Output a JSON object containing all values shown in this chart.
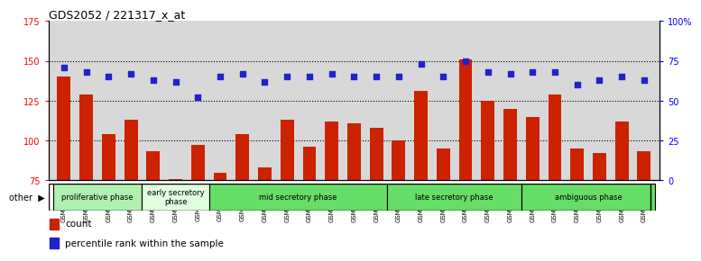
{
  "title": "GDS2052 / 221317_x_at",
  "samples": [
    "GSM109814",
    "GSM109815",
    "GSM109816",
    "GSM109817",
    "GSM109820",
    "GSM109821",
    "GSM109822",
    "GSM109824",
    "GSM109825",
    "GSM109826",
    "GSM109827",
    "GSM109828",
    "GSM109829",
    "GSM109830",
    "GSM109831",
    "GSM109834",
    "GSM109835",
    "GSM109836",
    "GSM109837",
    "GSM109838",
    "GSM109839",
    "GSM109818",
    "GSM109819",
    "GSM109823",
    "GSM109832",
    "GSM109833",
    "GSM109840"
  ],
  "counts": [
    140,
    129,
    104,
    113,
    93,
    76,
    97,
    80,
    104,
    83,
    113,
    96,
    112,
    111,
    108,
    100,
    131,
    95,
    151,
    125,
    120,
    115,
    129,
    95,
    92,
    112,
    93
  ],
  "percentiles": [
    71,
    68,
    65,
    67,
    63,
    62,
    52,
    65,
    67,
    62,
    65,
    65,
    67,
    65,
    65,
    65,
    73,
    65,
    75,
    68,
    67,
    68,
    68,
    60,
    63,
    65,
    63
  ],
  "phases": [
    {
      "label": "proliferative phase",
      "start": 0,
      "end": 4,
      "color": "#b0f0b0"
    },
    {
      "label": "early secretory\nphase",
      "start": 4,
      "end": 7,
      "color": "#dfffdf"
    },
    {
      "label": "mid secretory phase",
      "start": 7,
      "end": 15,
      "color": "#66dd66"
    },
    {
      "label": "late secretory phase",
      "start": 15,
      "end": 21,
      "color": "#66dd66"
    },
    {
      "label": "ambiguous phase",
      "start": 21,
      "end": 27,
      "color": "#66dd66"
    }
  ],
  "ylim_left": [
    75,
    175
  ],
  "ylim_right": [
    0,
    100
  ],
  "yticks_left": [
    75,
    100,
    125,
    150,
    175
  ],
  "yticks_right": [
    0,
    25,
    50,
    75,
    100
  ],
  "bar_color": "#cc2200",
  "dot_color": "#2222cc",
  "bg_color": "#d8d8d8",
  "fig_bg": "#ffffff",
  "gridline_color": "black",
  "gridline_style": "dotted"
}
